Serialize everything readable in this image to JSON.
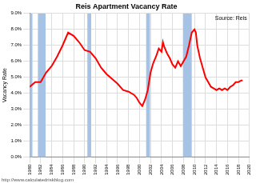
{
  "chart_data": {
    "type": "line",
    "title": "Reis Apartment Vacancy Rate",
    "y_label": "Vacancy Rate",
    "annotations": [
      "Source: Reis",
      "http://www.calculatedriskblog.com"
    ],
    "x": [
      1980,
      1981,
      1982,
      1983,
      1984,
      1985,
      1986,
      1987,
      1988,
      1989,
      1990,
      1991,
      1992,
      1993,
      1994,
      1995,
      1996,
      1997,
      1998,
      1999,
      1999.5,
      2000,
      2000.5,
      2001,
      2001.5,
      2002,
      2002.5,
      2003,
      2003.5,
      2004,
      2004.25,
      2004.5,
      2005,
      2005.5,
      2006,
      2006.5,
      2007,
      2007.5,
      2008,
      2008.5,
      2009,
      2009.5,
      2010,
      2010.25,
      2010.5,
      2011,
      2011.5,
      2012,
      2012.5,
      2013,
      2013.5,
      2014,
      2014.5,
      2015,
      2015.5,
      2016,
      2016.5,
      2017,
      2017.5,
      2018,
      2018.5,
      2018.75
    ],
    "values": [
      4.4,
      4.7,
      4.7,
      5.3,
      5.7,
      6.3,
      7.0,
      7.8,
      7.6,
      7.2,
      6.7,
      6.6,
      6.2,
      5.6,
      5.2,
      4.9,
      4.6,
      4.2,
      4.1,
      3.9,
      3.7,
      3.4,
      3.2,
      3.6,
      4.2,
      5.3,
      5.9,
      6.3,
      6.8,
      6.6,
      7.2,
      6.9,
      6.5,
      6.2,
      5.8,
      5.6,
      6.0,
      5.7,
      6.0,
      6.3,
      7.0,
      7.8,
      8.0,
      7.8,
      7.0,
      6.2,
      5.6,
      5.0,
      4.7,
      4.4,
      4.3,
      4.2,
      4.3,
      4.2,
      4.3,
      4.2,
      4.4,
      4.5,
      4.7,
      4.7,
      4.8,
      4.8
    ],
    "color": "#ff0000",
    "recessions": [
      [
        1980.0,
        1980.5
      ],
      [
        1981.5,
        1982.9
      ],
      [
        1990.5,
        1991.2
      ],
      [
        2001.2,
        2001.9
      ],
      [
        2007.9,
        2009.5
      ]
    ],
    "xlim": [
      1980,
      2020
    ],
    "xticks": [
      1980,
      1982,
      1984,
      1986,
      1988,
      1990,
      1992,
      1994,
      1996,
      1998,
      2000,
      2002,
      2004,
      2006,
      2008,
      2010,
      2012,
      2014,
      2016,
      2018,
      2020
    ],
    "ylim": [
      0,
      9
    ],
    "yticks": [
      {
        "value": 0,
        "label": "0.0%"
      },
      {
        "value": 1,
        "label": "1.0%"
      },
      {
        "value": 2,
        "label": "2.0%"
      },
      {
        "value": 3,
        "label": "3.0%"
      },
      {
        "value": 4,
        "label": "4.0%"
      },
      {
        "value": 5,
        "label": "5.0%"
      },
      {
        "value": 6,
        "label": "6.0%"
      },
      {
        "value": 7,
        "label": "7.0%"
      },
      {
        "value": 8,
        "label": "8.0%"
      },
      {
        "value": 9,
        "label": "9.0%"
      }
    ],
    "grid": true,
    "legend": false
  }
}
